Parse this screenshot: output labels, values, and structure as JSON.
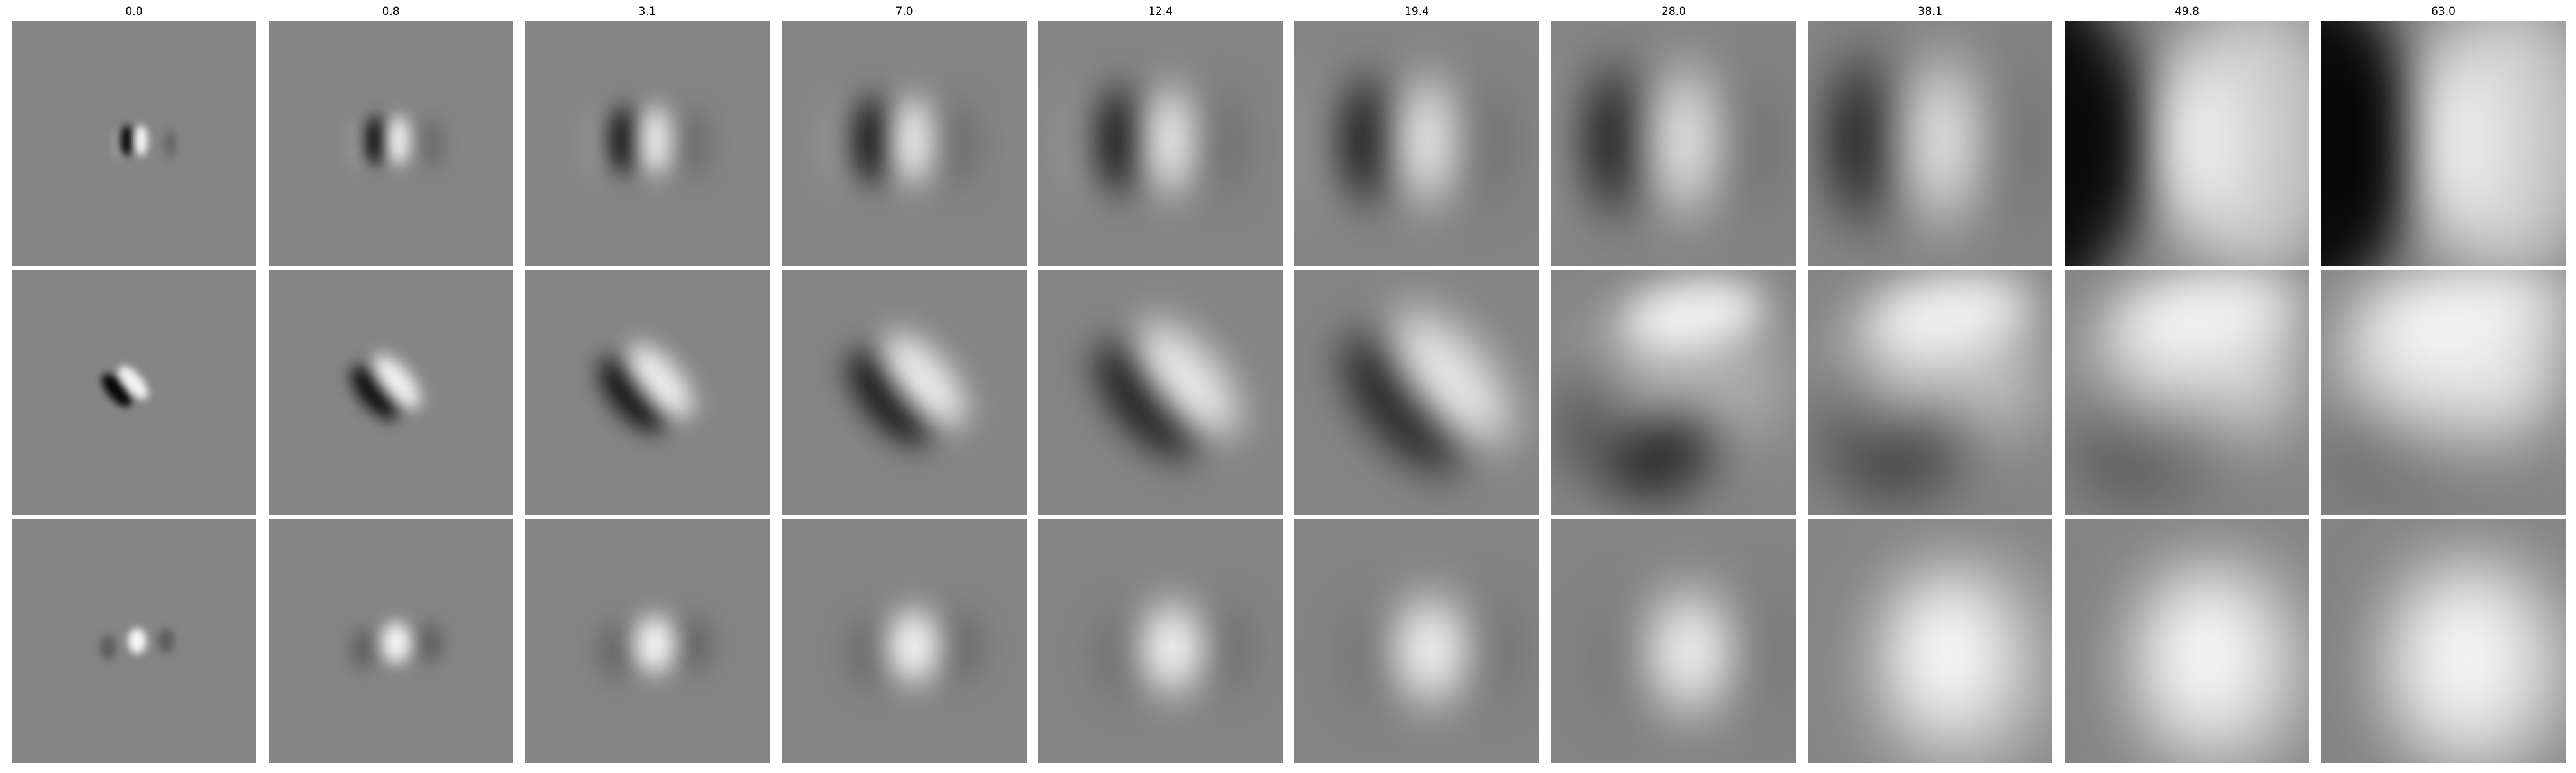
{
  "columns": [
    "0.0",
    "0.8",
    "3.1",
    "7.0",
    "12.4",
    "19.4",
    "28.0",
    "38.1",
    "49.8",
    "63.0"
  ],
  "rows": [
    "dipole-vertical",
    "dipole-diagonal",
    "blob-center"
  ],
  "colors": {
    "background": "#ffffff",
    "panel_gray": "#858585",
    "dark": "#000000",
    "light": "#ffffff"
  }
}
